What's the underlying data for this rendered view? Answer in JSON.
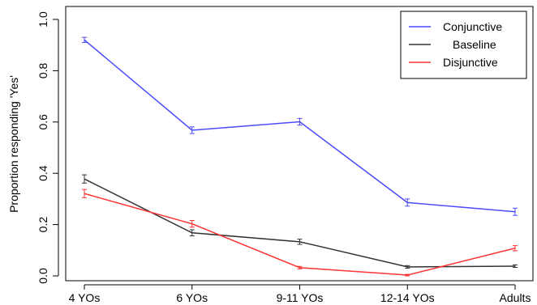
{
  "chart_data": {
    "type": "line",
    "title": "",
    "xlabel": "",
    "ylabel": "Proportion responding 'Yes'",
    "categories": [
      "4 YOs",
      "6 YOs",
      "9-11 YOs",
      "12-14 YOs",
      "Adults"
    ],
    "ylim": [
      0,
      1.0
    ],
    "yticks": [
      "0.0",
      "0.2",
      "0.4",
      "0.6",
      "0.8",
      "1.0"
    ],
    "grid": false,
    "legend_position": "top-right",
    "series": [
      {
        "name": "Conjunctive",
        "color": "#4a4aff",
        "values": [
          0.92,
          0.568,
          0.601,
          0.286,
          0.25
        ],
        "errors": [
          0.01,
          0.013,
          0.013,
          0.014,
          0.014
        ]
      },
      {
        "name": "Baseline",
        "color": "#333333",
        "values": [
          0.378,
          0.168,
          0.133,
          0.035,
          0.038
        ],
        "errors": [
          0.016,
          0.012,
          0.01,
          0.005,
          0.005
        ]
      },
      {
        "name": "Disjunctive",
        "color": "#ff3333",
        "values": [
          0.321,
          0.203,
          0.032,
          0.003,
          0.108
        ],
        "errors": [
          0.016,
          0.013,
          0.005,
          0.003,
          0.01
        ]
      }
    ]
  }
}
